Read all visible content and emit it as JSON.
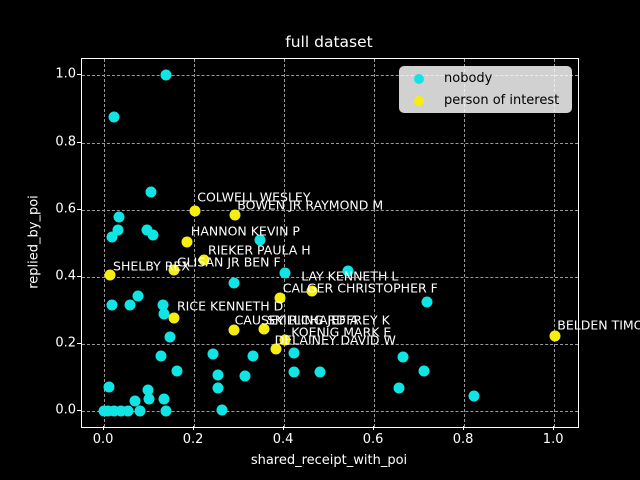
{
  "chart_data": {
    "type": "scatter",
    "title": "full dataset",
    "xlabel": "shared_receipt_with_poi",
    "ylabel": "replied_by_poi",
    "xlim": [
      -0.049,
      1.053
    ],
    "ylim": [
      -0.048,
      1.049
    ],
    "xticks": [
      0.0,
      0.2,
      0.4,
      0.6,
      0.8,
      1.0
    ],
    "yticks": [
      0.0,
      0.2,
      0.4,
      0.6,
      0.8,
      1.0
    ],
    "grid": true,
    "legend_position": "upper right",
    "series": [
      {
        "name": "nobody",
        "color": "#10e4e4",
        "points": [
          [
            0.138,
            1.0
          ],
          [
            0.021,
            0.875
          ],
          [
            0.105,
            0.652
          ],
          [
            0.033,
            0.578
          ],
          [
            0.03,
            0.54
          ],
          [
            0.018,
            0.517
          ],
          [
            0.096,
            0.54
          ],
          [
            0.109,
            0.523
          ],
          [
            0.347,
            0.51
          ],
          [
            0.402,
            0.411
          ],
          [
            0.541,
            0.416
          ],
          [
            0.288,
            0.38
          ],
          [
            0.076,
            0.343
          ],
          [
            0.018,
            0.315
          ],
          [
            0.058,
            0.315
          ],
          [
            0.13,
            0.317
          ],
          [
            0.134,
            0.29
          ],
          [
            0.718,
            0.325
          ],
          [
            0.147,
            0.22
          ],
          [
            0.127,
            0.164
          ],
          [
            0.243,
            0.171
          ],
          [
            0.33,
            0.163
          ],
          [
            0.422,
            0.172
          ],
          [
            0.664,
            0.161
          ],
          [
            0.162,
            0.119
          ],
          [
            0.253,
            0.107
          ],
          [
            0.314,
            0.103
          ],
          [
            0.423,
            0.116
          ],
          [
            0.479,
            0.116
          ],
          [
            0.71,
            0.118
          ],
          [
            0.012,
            0.072
          ],
          [
            0.097,
            0.062
          ],
          [
            0.069,
            0.03
          ],
          [
            0.1,
            0.035
          ],
          [
            0.134,
            0.034
          ],
          [
            0.253,
            0.067
          ],
          [
            0.656,
            0.067
          ],
          [
            0.822,
            0.045
          ],
          [
            0.0,
            0.0
          ],
          [
            0.008,
            0.0
          ],
          [
            0.023,
            0.0
          ],
          [
            0.038,
            0.0
          ],
          [
            0.053,
            0.0
          ],
          [
            0.079,
            0.0
          ],
          [
            0.138,
            0.001
          ],
          [
            0.262,
            0.002
          ]
        ]
      },
      {
        "name": "person of interest",
        "color": "#f7ee10",
        "points": [
          [
            0.201,
            0.595
          ],
          [
            0.29,
            0.584
          ],
          [
            0.185,
            0.504
          ],
          [
            0.223,
            0.45
          ],
          [
            0.156,
            0.42
          ],
          [
            0.014,
            0.405
          ],
          [
            0.462,
            0.356
          ],
          [
            0.39,
            0.337
          ],
          [
            0.155,
            0.278
          ],
          [
            0.288,
            0.241
          ],
          [
            0.356,
            0.244
          ],
          [
            0.402,
            0.211
          ],
          [
            0.382,
            0.186
          ],
          [
            1.001,
            0.224
          ]
        ]
      }
    ],
    "annotations": [
      {
        "text": "COLWELL WESLEY",
        "x": 0.207,
        "y": 0.618
      },
      {
        "text": "BOWEN JR RAYMOND M",
        "x": 0.296,
        "y": 0.594
      },
      {
        "text": "HANNON KEVIN P",
        "x": 0.193,
        "y": 0.514
      },
      {
        "text": "RIEKER PAULA H",
        "x": 0.231,
        "y": 0.459
      },
      {
        "text": "GLISAN JR BEN F",
        "x": 0.162,
        "y": 0.424
      },
      {
        "text": "SHELBY REX",
        "x": 0.02,
        "y": 0.41
      },
      {
        "text": "LAY KENNETH L",
        "x": 0.438,
        "y": 0.381
      },
      {
        "text": "CALGER CHRISTOPHER F",
        "x": 0.397,
        "y": 0.344
      },
      {
        "text": "RICE KENNETH D",
        "x": 0.162,
        "y": 0.293
      },
      {
        "text": "CAUSEY RICHARD A",
        "x": 0.29,
        "y": 0.25
      },
      {
        "text": "SKILLING JEFFREY K",
        "x": 0.362,
        "y": 0.25
      },
      {
        "text": "KOENIG MARK E",
        "x": 0.416,
        "y": 0.214
      },
      {
        "text": "DELAINEY DAVID W",
        "x": 0.379,
        "y": 0.189
      },
      {
        "text": "BELDEN TIMOTHY N",
        "x": 1.007,
        "y": 0.234
      }
    ]
  },
  "legend": {
    "items": [
      {
        "label": "nobody"
      },
      {
        "label": "person of interest"
      }
    ]
  }
}
